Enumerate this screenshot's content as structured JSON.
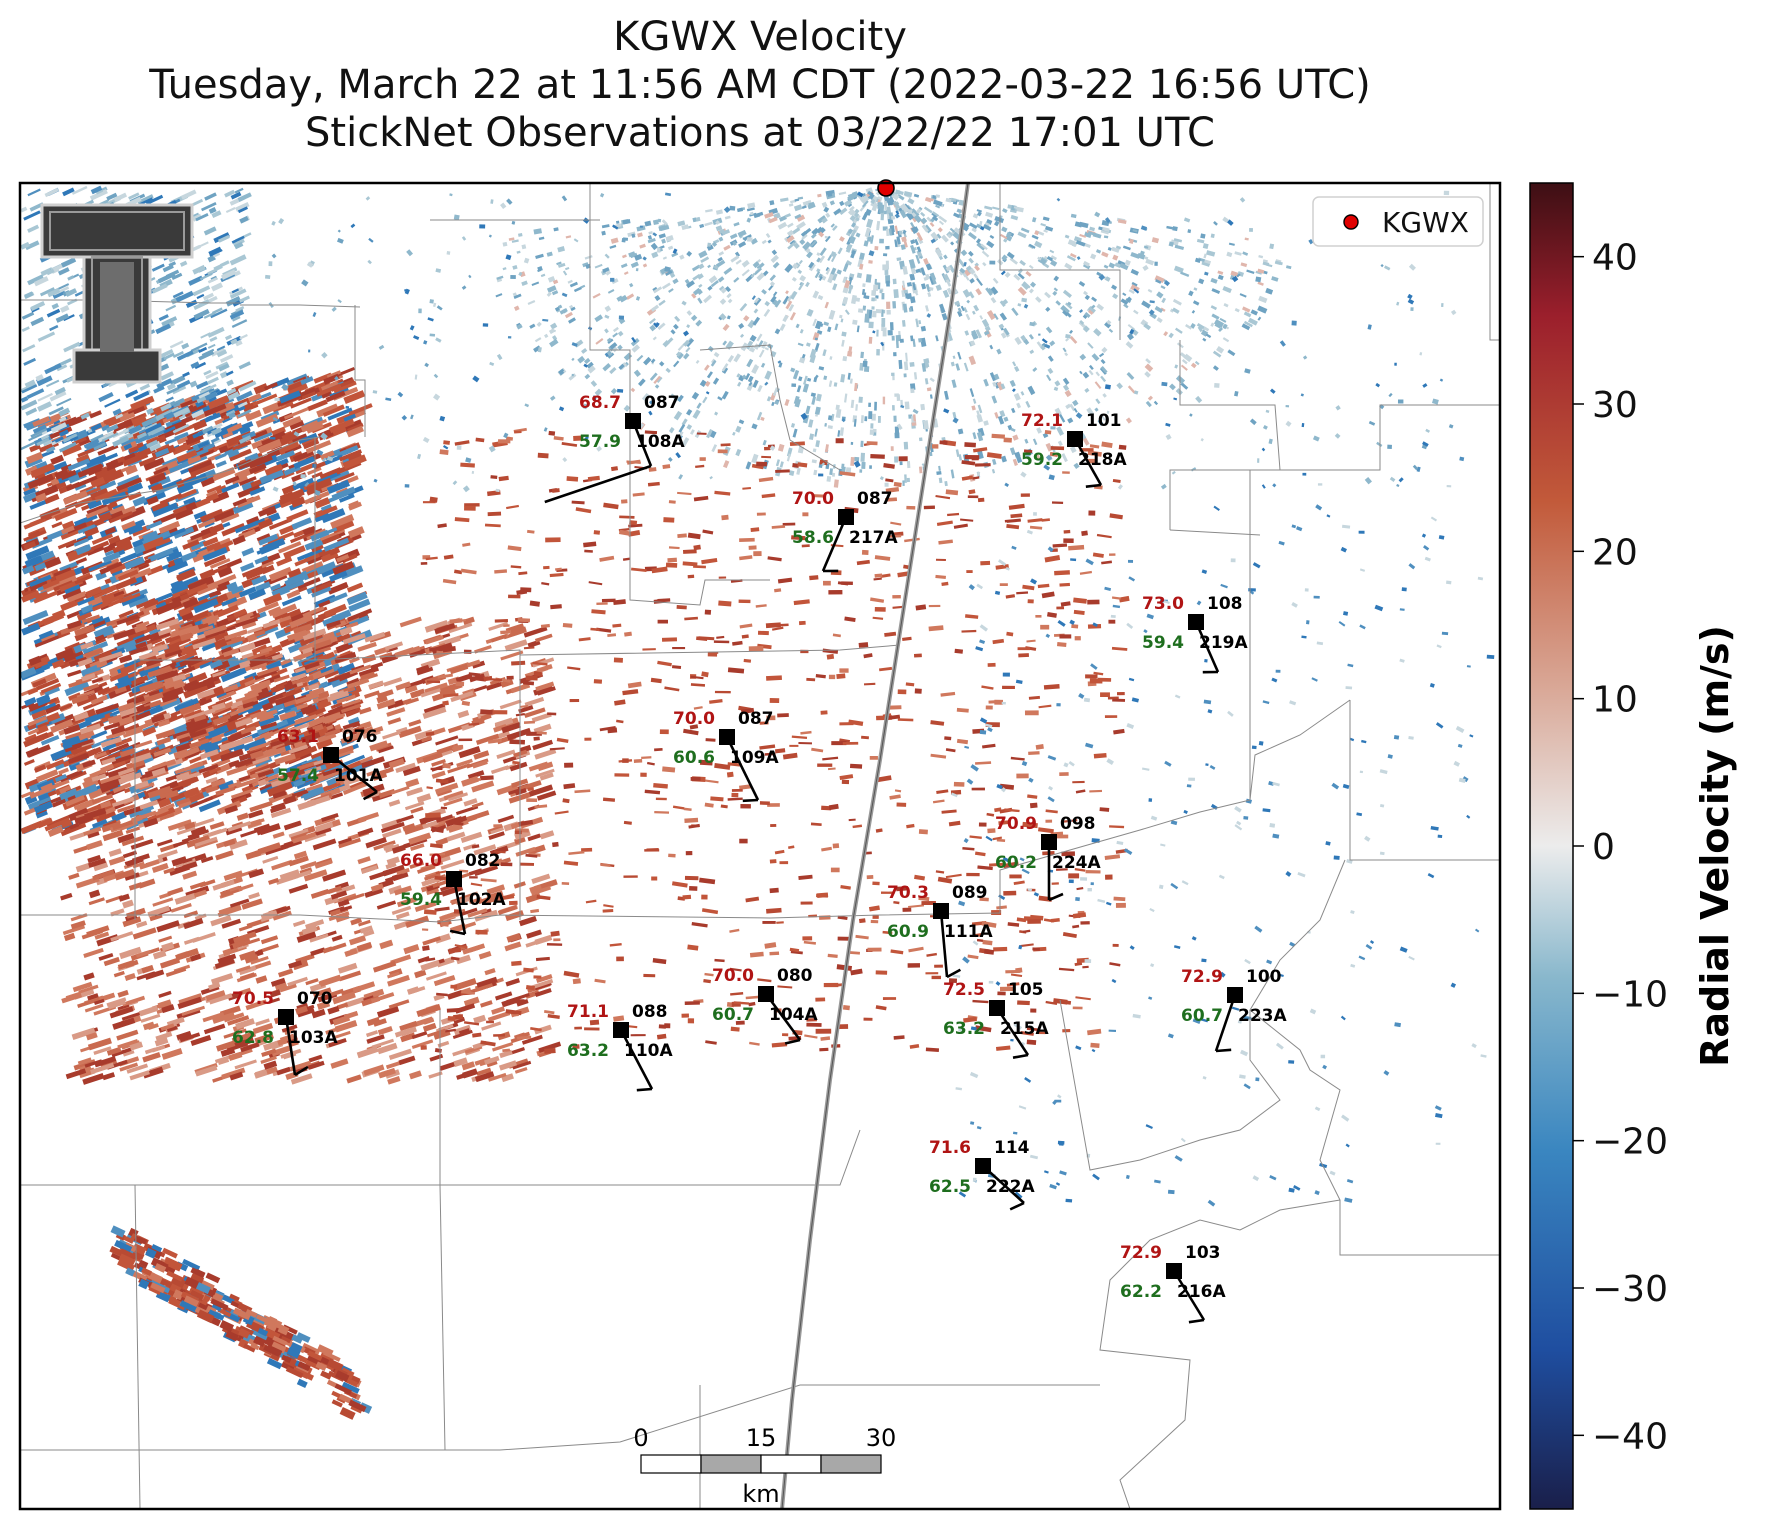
{
  "title": {
    "line1": "KGWX Velocity",
    "line2": "Tuesday, March 22 at 11:56 AM CDT (2022-03-22 16:56 UTC)",
    "line3": "StickNet Observations at 03/22/22 17:01 UTC"
  },
  "legend": {
    "label": "KGWX"
  },
  "colorbar": {
    "label": "Radial Velocity (m/s)",
    "range": [
      -45,
      45
    ],
    "ticks": [
      "40",
      "30",
      "20",
      "10",
      "0",
      "−10",
      "−20",
      "−30",
      "−40"
    ],
    "tick_values": [
      40,
      30,
      20,
      10,
      0,
      -10,
      -20,
      -30,
      -40
    ],
    "colors": [
      "#1a1f4a",
      "#1f4ea0",
      "#3a86c0",
      "#88b7cc",
      "#ececec",
      "#d9a796",
      "#c25a3a",
      "#9b1f2c",
      "#3d0f14"
    ]
  },
  "scalebar": {
    "ticks": [
      "0",
      "15",
      "30"
    ],
    "unit": "km"
  },
  "station_colors": {
    "temperature": "#b01414",
    "dewpoint": "#1e6e1e",
    "label": "#000000"
  },
  "stations": [
    {
      "id": "108A",
      "temp": "68.7",
      "dew": "57.9",
      "dir": "087"
    },
    {
      "id": "218A",
      "temp": "72.1",
      "dew": "59.2",
      "dir": "101"
    },
    {
      "id": "217A",
      "temp": "70.0",
      "dew": "58.6",
      "dir": "087"
    },
    {
      "id": "219A",
      "temp": "73.0",
      "dew": "59.4",
      "dir": "108"
    },
    {
      "id": "101A",
      "temp": "63.1",
      "dew": "57.4",
      "dir": "076"
    },
    {
      "id": "109A",
      "temp": "70.0",
      "dew": "60.6",
      "dir": "087"
    },
    {
      "id": "224A",
      "temp": "70.9",
      "dew": "60.2",
      "dir": "098"
    },
    {
      "id": "102A",
      "temp": "66.0",
      "dew": "59.4",
      "dir": "082"
    },
    {
      "id": "111A",
      "temp": "70.3",
      "dew": "60.9",
      "dir": "089"
    },
    {
      "id": "103A",
      "temp": "70.5",
      "dew": "62.8",
      "dir": "070"
    },
    {
      "id": "110A",
      "temp": "71.1",
      "dew": "63.2",
      "dir": "088"
    },
    {
      "id": "104A",
      "temp": "70.0",
      "dew": "60.7",
      "dir": "080"
    },
    {
      "id": "215A",
      "temp": "72.5",
      "dew": "63.2",
      "dir": "105"
    },
    {
      "id": "223A",
      "temp": "72.9",
      "dew": "60.7",
      "dir": "100"
    },
    {
      "id": "222A",
      "temp": "71.6",
      "dew": "62.5",
      "dir": "114"
    },
    {
      "id": "216A",
      "temp": "72.9",
      "dew": "62.2",
      "dir": "103"
    }
  ]
}
